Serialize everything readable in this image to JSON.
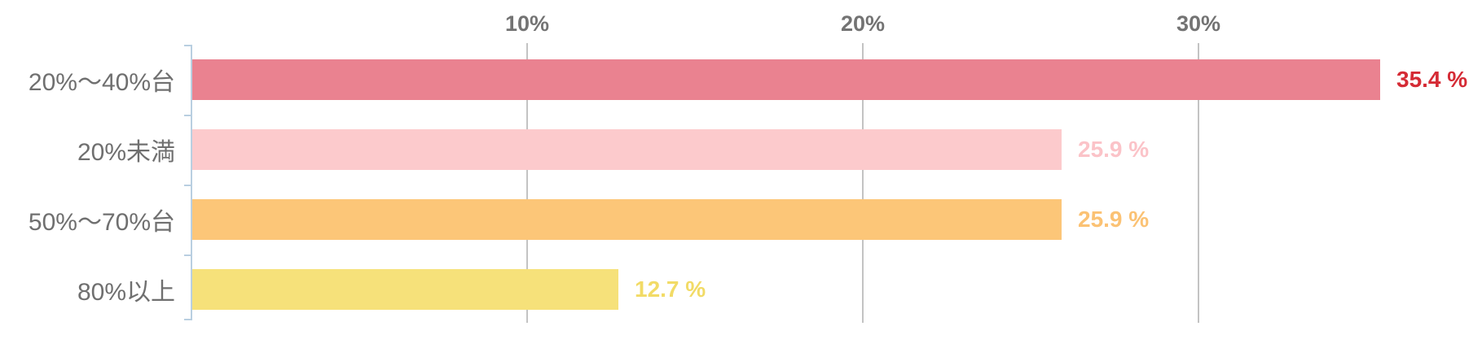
{
  "chart_data": {
    "type": "bar",
    "orientation": "horizontal",
    "title": "",
    "xlabel": "",
    "ylabel": "",
    "grid": true,
    "legend": false,
    "categories": [
      "20%〜40%台",
      "20%未満",
      "50%〜70%台",
      "80%以上"
    ],
    "values": [
      35.4,
      25.9,
      25.9,
      12.7
    ],
    "value_labels": [
      "35.4 %",
      "25.9 %",
      "25.9 %",
      "12.7 %"
    ],
    "bar_colors": [
      "#EA8290",
      "#FCCACC",
      "#FCC678",
      "#F6E17A"
    ],
    "value_label_colors": [
      "#D52B35",
      "#FBC3C8",
      "#FBC274",
      "#F2DB66"
    ],
    "x_ticks": [
      {
        "label": "10%",
        "value": 10
      },
      {
        "label": "20%",
        "value": 20
      },
      {
        "label": "30%",
        "value": 30
      }
    ],
    "xlim": [
      0,
      38.4
    ],
    "colors": {
      "background": "#FFFFFF",
      "axis_line": "#B9CFE1",
      "gridline": "#C3C3C3",
      "x_tick_label": "#737373",
      "category_label": "#6F6F6F"
    }
  }
}
